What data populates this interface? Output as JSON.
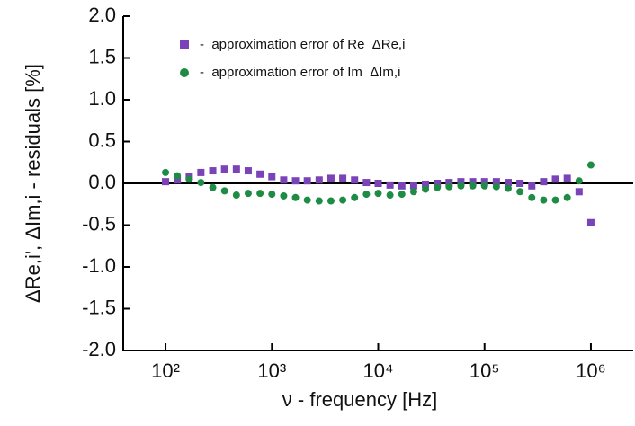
{
  "chart_data": {
    "type": "scatter",
    "xlabel": "ν - frequency   [Hz]",
    "ylabel": "ΔRe,i',  ΔIm,i - residuals  [%]",
    "xscale": "log",
    "xlim": [
      40,
      2500000
    ],
    "xticks": [
      {
        "value": 100,
        "label": "10²"
      },
      {
        "value": 1000,
        "label": "10³"
      },
      {
        "value": 10000,
        "label": "10⁴"
      },
      {
        "value": 100000,
        "label": "10⁵"
      },
      {
        "value": 1000000,
        "label": "10⁶"
      }
    ],
    "ylim": [
      -2,
      2
    ],
    "yticks": [
      {
        "value": -2,
        "label": "-2.0"
      },
      {
        "value": -1.5,
        "label": "-1.5"
      },
      {
        "value": -1,
        "label": "-1.0"
      },
      {
        "value": -0.5,
        "label": "-0.5"
      },
      {
        "value": 0,
        "label": "0.0"
      },
      {
        "value": 0.5,
        "label": "0.5"
      },
      {
        "value": 1,
        "label": "1.0"
      },
      {
        "value": 1.5,
        "label": "1.5"
      },
      {
        "value": 2,
        "label": "2.0"
      }
    ],
    "zero_line": true,
    "x": [
      100,
      129,
      167,
      215,
      278,
      359,
      464,
      599,
      774,
      1000,
      1292,
      1668,
      2154,
      2783,
      3594,
      4642,
      5995,
      7743,
      10000,
      12915,
      16681,
      21544,
      27826,
      35938,
      46416,
      59948,
      77426,
      100000,
      129155,
      166810,
      215443,
      278256,
      359381,
      464159,
      599484,
      774264,
      1000000
    ],
    "series": [
      {
        "name": "-  approximation error of Re  ΔRe,i",
        "color": "#7a44b8",
        "marker": "square",
        "values": [
          0.02,
          0.04,
          0.08,
          0.13,
          0.15,
          0.17,
          0.17,
          0.15,
          0.11,
          0.08,
          0.04,
          0.03,
          0.03,
          0.04,
          0.06,
          0.06,
          0.04,
          0.01,
          0.0,
          -0.02,
          -0.03,
          -0.03,
          -0.01,
          0.0,
          0.01,
          0.02,
          0.02,
          0.02,
          0.02,
          0.01,
          0.0,
          -0.03,
          0.02,
          0.05,
          0.06,
          -0.1,
          -0.47
        ]
      },
      {
        "name": "-  approximation error of Im  ΔIm,i",
        "color": "#1e8c45",
        "marker": "circle",
        "values": [
          0.13,
          0.09,
          0.05,
          0.01,
          -0.05,
          -0.09,
          -0.14,
          -0.12,
          -0.12,
          -0.13,
          -0.15,
          -0.17,
          -0.2,
          -0.21,
          -0.21,
          -0.2,
          -0.17,
          -0.13,
          -0.12,
          -0.14,
          -0.13,
          -0.1,
          -0.07,
          -0.05,
          -0.04,
          -0.03,
          -0.03,
          -0.03,
          -0.04,
          -0.06,
          -0.1,
          -0.17,
          -0.2,
          -0.2,
          -0.17,
          0.03,
          0.22
        ]
      }
    ]
  }
}
